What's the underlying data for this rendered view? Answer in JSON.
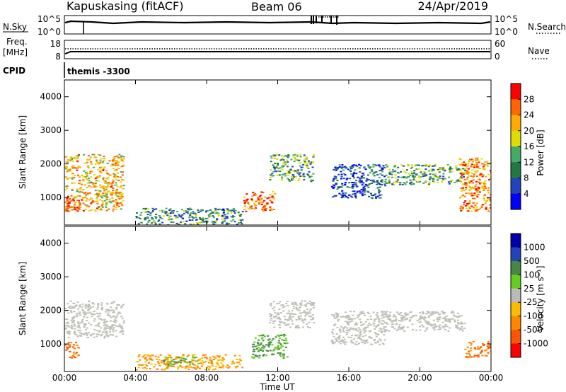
{
  "header": {
    "station": "Kapuskasing (fitACF)",
    "beam": "Beam 06",
    "date": "24/Apr/2019"
  },
  "sky_panel": {
    "left_label": "N.Sky",
    "right_label": "N.Search",
    "ticks": [
      "10^5",
      "10^0"
    ]
  },
  "freq_panel": {
    "left_label_1": "Freq.",
    "left_label_2": "[MHz]",
    "left_ticks": [
      "18",
      "8"
    ],
    "right_label": "Nave",
    "right_ticks": [
      "60",
      "0"
    ]
  },
  "cpid": {
    "label": "CPID",
    "value": "themis -3300"
  },
  "colors": {
    "power_scale": [
      "#0000ff",
      "#2244bb",
      "#227744",
      "#44aa66",
      "#dddd00",
      "#ffaa00",
      "#ff6600",
      "#ff0000"
    ],
    "velocity_scale": [
      "#ff0000",
      "#ff5500",
      "#ff8800",
      "#ffbb00",
      "#bbbbbb",
      "#66cc22",
      "#448844",
      "#2244bb",
      "#0000aa"
    ],
    "ground_scatter": "#c0c0b8"
  },
  "chart_data": [
    {
      "type": "heatmap",
      "title": "Power",
      "xlabel": "Time UT",
      "ylabel": "Slant Range [km]",
      "x_ticks": [
        "00:00",
        "04:00",
        "08:00",
        "12:00",
        "16:00",
        "20:00",
        "00:00"
      ],
      "y_ticks": [
        "1000",
        "2000",
        "3000",
        "4000"
      ],
      "xlim": [
        0,
        24
      ],
      "ylim": [
        180,
        4500
      ],
      "colorbar": {
        "label": "Power [dB]",
        "ticks": [
          "4",
          "8",
          "12",
          "16",
          "20",
          "24",
          "28"
        ],
        "range": [
          0,
          30
        ]
      },
      "regions": [
        {
          "t": [
            0.0,
            3.3
          ],
          "r": [
            600,
            2300
          ],
          "value": 20
        },
        {
          "t": [
            0.0,
            0.8
          ],
          "r": [
            600,
            1000
          ],
          "value": 28
        },
        {
          "t": [
            4.0,
            10.0
          ],
          "r": [
            200,
            700
          ],
          "value": 10
        },
        {
          "t": [
            10.0,
            11.8
          ],
          "r": [
            600,
            1200
          ],
          "value": 24
        },
        {
          "t": [
            11.5,
            14.0
          ],
          "r": [
            1500,
            2300
          ],
          "value": 12
        },
        {
          "t": [
            15.0,
            18.0
          ],
          "r": [
            1000,
            2000
          ],
          "value": 6
        },
        {
          "t": [
            18.0,
            22.5
          ],
          "r": [
            1400,
            2000
          ],
          "value": 12
        },
        {
          "t": [
            22.2,
            24.0
          ],
          "r": [
            600,
            2200
          ],
          "value": 22
        }
      ]
    },
    {
      "type": "heatmap",
      "title": "Velocity",
      "xlabel": "Time UT",
      "ylabel": "Slant Range [km]",
      "x_ticks": [
        "00:00",
        "04:00",
        "08:00",
        "12:00",
        "16:00",
        "20:00",
        "00:00"
      ],
      "y_ticks": [
        "1000",
        "2000",
        "3000",
        "4000"
      ],
      "xlim": [
        0,
        24
      ],
      "ylim": [
        180,
        4500
      ],
      "colorbar": {
        "label": "Velocity [m s⁻¹]",
        "ticks": [
          "1000",
          "500",
          "100",
          "25",
          "-25",
          "-100",
          "-500",
          "-1000"
        ]
      },
      "regions": [
        {
          "t": [
            0.0,
            3.3
          ],
          "r": [
            1200,
            2300
          ],
          "kind": "ground"
        },
        {
          "t": [
            0.0,
            0.8
          ],
          "r": [
            600,
            1100
          ],
          "value": -500
        },
        {
          "t": [
            4.0,
            10.0
          ],
          "r": [
            250,
            700
          ],
          "value": -100
        },
        {
          "t": [
            5.5,
            7.5
          ],
          "r": [
            400,
            650
          ],
          "value": 100
        },
        {
          "t": [
            10.5,
            12.5
          ],
          "r": [
            600,
            1300
          ],
          "value": 100
        },
        {
          "t": [
            11.5,
            14.0
          ],
          "r": [
            1500,
            2300
          ],
          "kind": "ground"
        },
        {
          "t": [
            15.0,
            18.0
          ],
          "r": [
            1000,
            2000
          ],
          "kind": "ground"
        },
        {
          "t": [
            18.0,
            22.5
          ],
          "r": [
            1400,
            2000
          ],
          "kind": "ground"
        },
        {
          "t": [
            22.5,
            24.0
          ],
          "r": [
            600,
            1100
          ],
          "value": -500
        }
      ]
    }
  ]
}
